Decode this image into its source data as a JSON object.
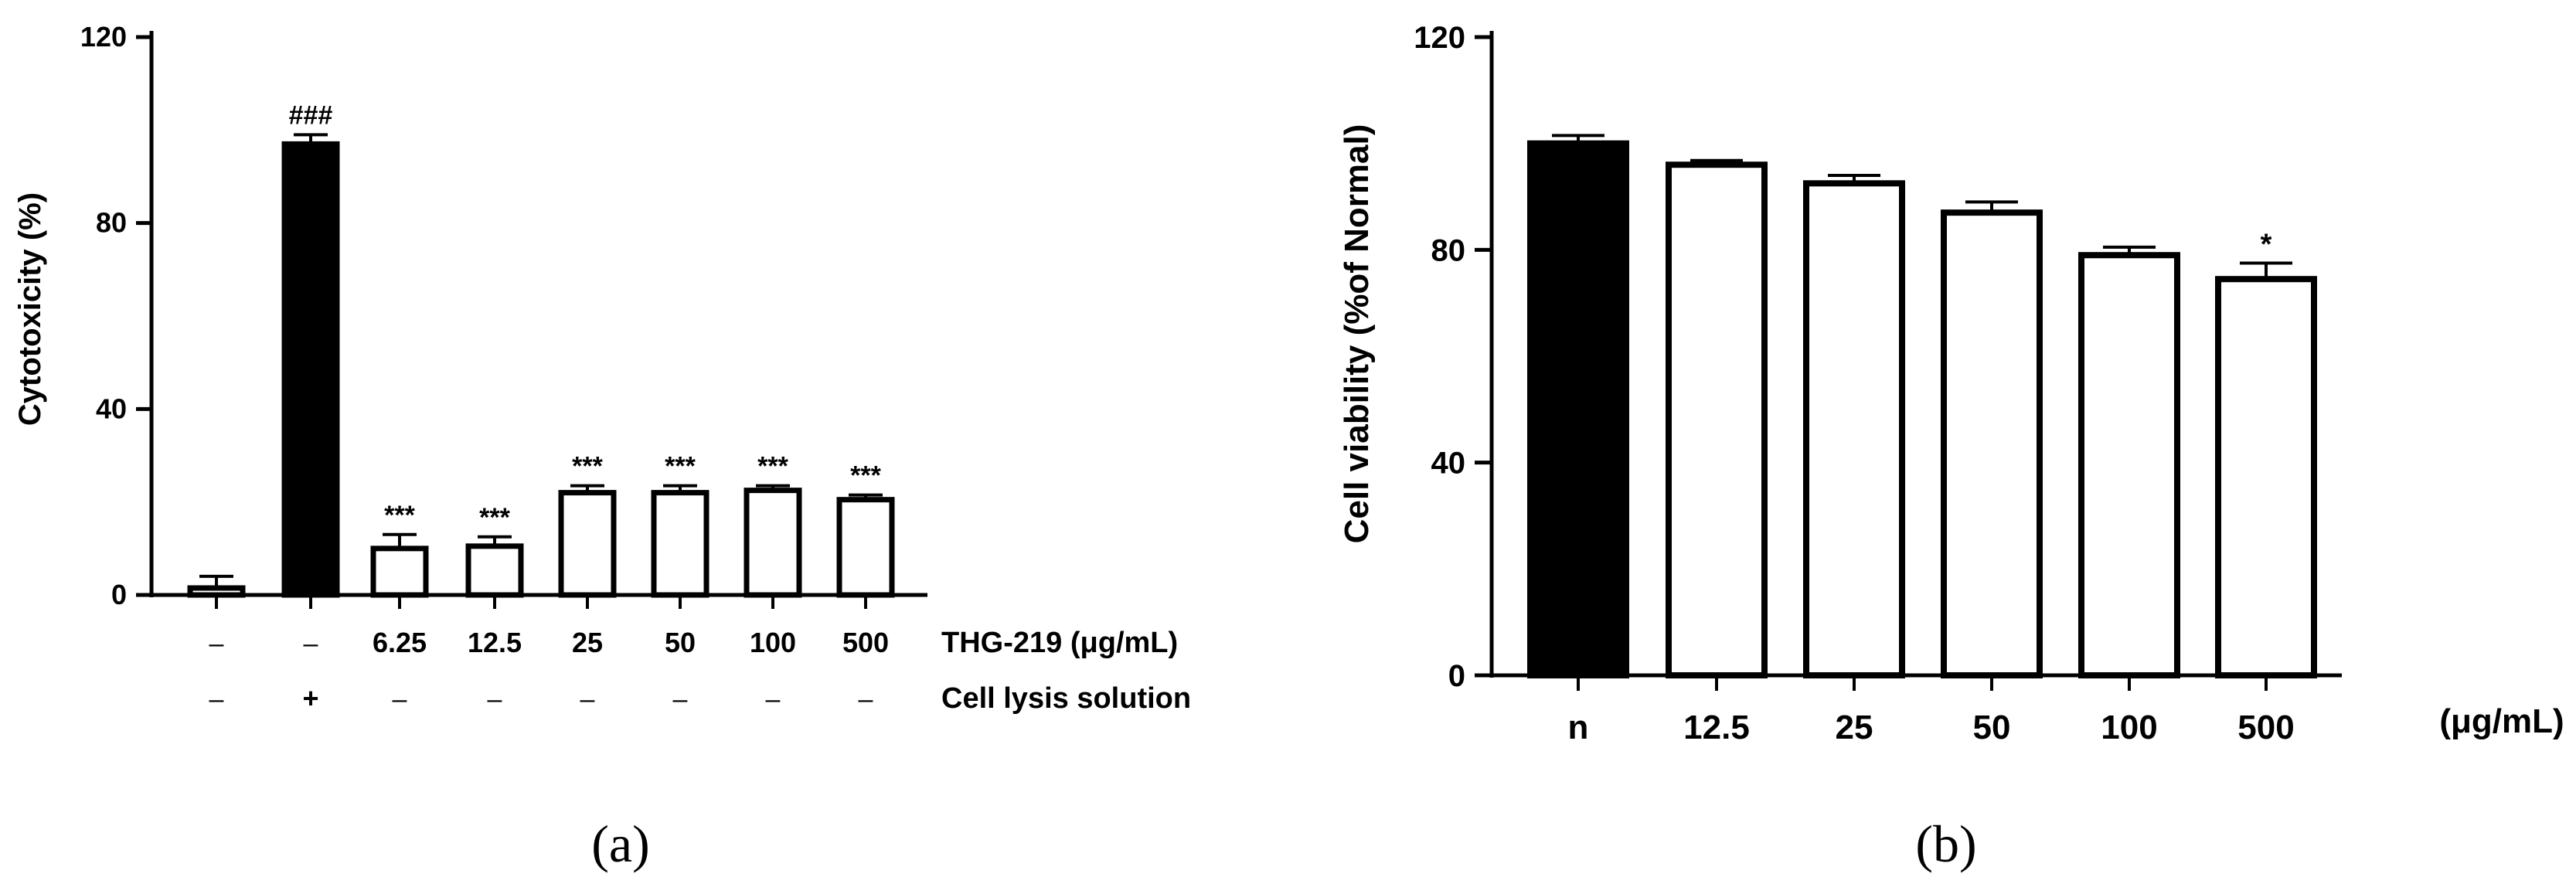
{
  "chart_data": [
    {
      "panel_label": "(a)",
      "type": "bar",
      "ylabel": "Cytotoxicity (%)",
      "ylim": [
        0,
        120
      ],
      "yticks": [
        "0",
        "40",
        "80",
        "120"
      ],
      "grid": false,
      "legend": "none",
      "bar_color_filled": "#000000",
      "bar_color_open": "#ffffff",
      "bars": [
        {
          "value": 1.5,
          "error": 2.5,
          "fill": "white",
          "annotation": ""
        },
        {
          "value": 97,
          "error": 2.0,
          "fill": "black",
          "annotation": "###"
        },
        {
          "value": 10,
          "error": 3.0,
          "fill": "white",
          "annotation": "***"
        },
        {
          "value": 10.5,
          "error": 2.0,
          "fill": "white",
          "annotation": "***"
        },
        {
          "value": 22,
          "error": 1.5,
          "fill": "white",
          "annotation": "***"
        },
        {
          "value": 22,
          "error": 1.5,
          "fill": "white",
          "annotation": "***"
        },
        {
          "value": 22.5,
          "error": 1.0,
          "fill": "white",
          "annotation": "***"
        },
        {
          "value": 20.5,
          "error": 1.0,
          "fill": "white",
          "annotation": "***"
        }
      ],
      "rows": [
        {
          "label": "THG-219 (μg/mL)",
          "cells": [
            "–",
            "–",
            "6.25",
            "12.5",
            "25",
            "50",
            "100",
            "500"
          ]
        },
        {
          "label": "Cell lysis solution",
          "cells": [
            "–",
            "+",
            "–",
            "–",
            "–",
            "–",
            "–",
            "–"
          ]
        }
      ]
    },
    {
      "panel_label": "(b)",
      "type": "bar",
      "ylabel": "Cell viability (%of Normal)",
      "xlabel": "(μg/mL)",
      "ylim": [
        0,
        120
      ],
      "yticks": [
        "0",
        "40",
        "80",
        "120"
      ],
      "grid": false,
      "legend": "none",
      "categories": [
        "n",
        "12.5",
        "25",
        "50",
        "100",
        "500"
      ],
      "values": [
        100,
        96,
        92.5,
        87,
        79,
        74.5
      ],
      "errors": [
        1.5,
        0.8,
        1.5,
        2.0,
        1.5,
        3.0
      ],
      "fills": [
        "black",
        "white",
        "white",
        "white",
        "white",
        "white"
      ],
      "annotations": [
        "",
        "",
        "",
        "",
        "",
        "*"
      ]
    }
  ]
}
